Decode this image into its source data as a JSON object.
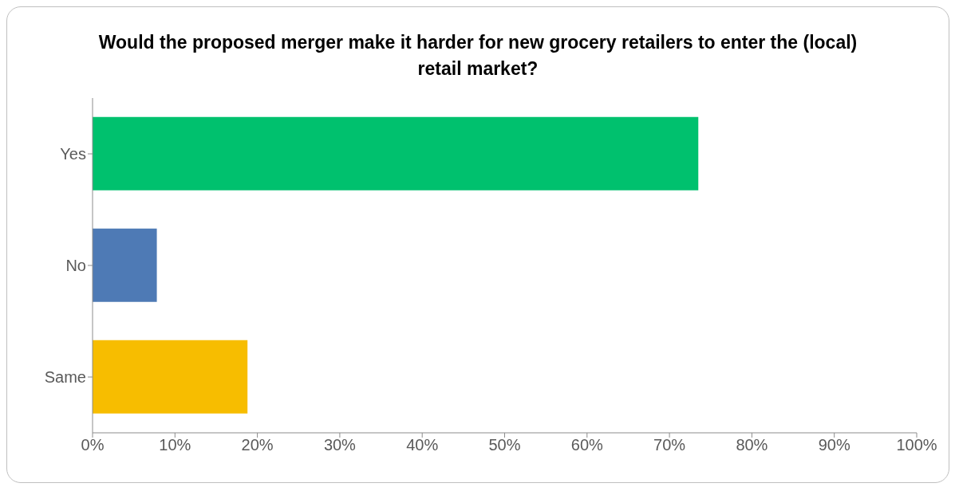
{
  "chart_data": {
    "type": "bar",
    "orientation": "horizontal",
    "title": "Would the proposed merger make it harder for new grocery retailers to enter the (local) retail market?",
    "categories": [
      "Yes",
      "No",
      "Same"
    ],
    "values": [
      73.5,
      7.8,
      18.8
    ],
    "colors": [
      "#00c16e",
      "#4e7ab5",
      "#f7bd00"
    ],
    "xlim": [
      0,
      100
    ],
    "xticks": [
      {
        "value": 0,
        "label": "0%"
      },
      {
        "value": 10,
        "label": "10%"
      },
      {
        "value": 20,
        "label": "20%"
      },
      {
        "value": 30,
        "label": "30%"
      },
      {
        "value": 40,
        "label": "40%"
      },
      {
        "value": 50,
        "label": "50%"
      },
      {
        "value": 60,
        "label": "60%"
      },
      {
        "value": 70,
        "label": "70%"
      },
      {
        "value": 80,
        "label": "80%"
      },
      {
        "value": 90,
        "label": "90%"
      },
      {
        "value": 100,
        "label": "100%"
      }
    ],
    "grid": false,
    "legend": false
  }
}
